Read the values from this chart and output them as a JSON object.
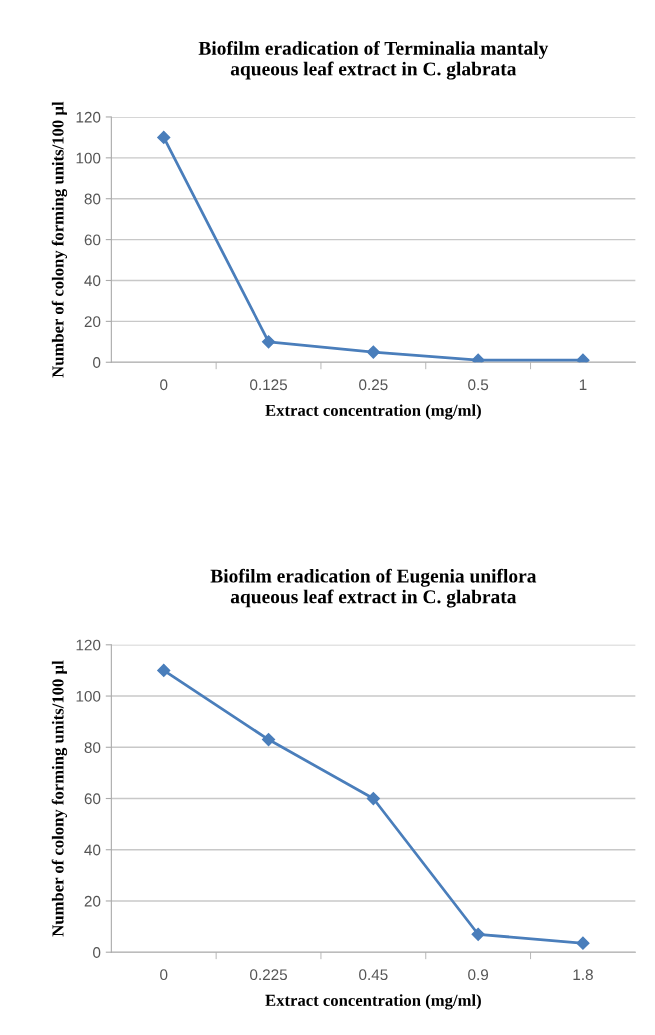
{
  "chart_data": [
    {
      "type": "line",
      "title": "Biofilm eradication of Terminalia mantaly\naqueous leaf extract in C. glabrata",
      "xlabel": "Extract concentration (mg/ml)",
      "ylabel": "Number of colony forming units/100 µl",
      "categories": [
        "0",
        "0.125",
        "0.25",
        "0.5",
        "1"
      ],
      "series": [
        {
          "color": "#4a7ebb",
          "values": [
            110,
            10,
            5,
            1,
            1
          ]
        }
      ],
      "ylim": [
        0,
        120
      ],
      "yticks": [
        0,
        20,
        40,
        60,
        80,
        100,
        120
      ],
      "grid": "y",
      "marker": "diamond",
      "line_style": "solid"
    },
    {
      "type": "line",
      "title": "Biofilm eradication of Eugenia uniflora\naqueous leaf extract in C. glabrata",
      "xlabel": "Extract concentration (mg/ml)",
      "ylabel": "Number of colony forming units/100 µl",
      "categories": [
        "0",
        "0.225",
        "0.45",
        "0.9",
        "1.8"
      ],
      "series": [
        {
          "color": "#4a7ebb",
          "values": [
            110,
            83,
            60,
            7,
            3.5
          ]
        }
      ],
      "ylim": [
        0,
        120
      ],
      "yticks": [
        0,
        20,
        40,
        60,
        80,
        100,
        120
      ],
      "grid": "y",
      "marker": "diamond",
      "line_style": "solid"
    }
  ]
}
